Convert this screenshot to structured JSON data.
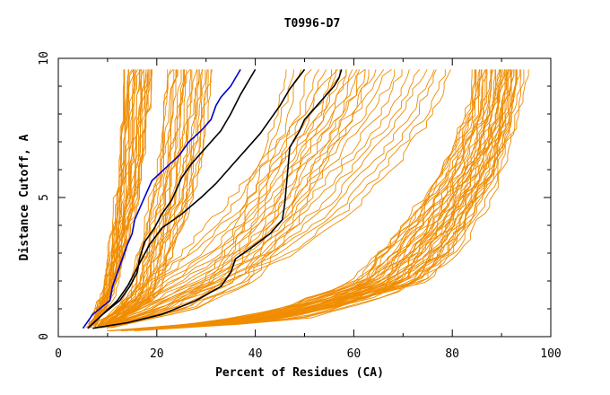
{
  "chart_data": {
    "type": "line",
    "title": "T0996-D7",
    "xlabel": "Percent of Residues (CA)",
    "ylabel": "Distance Cutoff, A",
    "xlim": [
      0,
      100
    ],
    "ylim": [
      0,
      10
    ],
    "xticks": [
      "0",
      "20",
      "40",
      "60",
      "80",
      "100"
    ],
    "yticks": [
      "0",
      "5",
      "10"
    ],
    "grid": false,
    "colors": {
      "background_models": "#f08c00",
      "blue": "#0000cc",
      "black": "#000000",
      "axis": "#000000"
    },
    "bundles": [
      {
        "name_hidden": true,
        "count": 28,
        "start": [
          [
            6,
            0.3
          ],
          [
            9,
            1.5
          ],
          [
            10.5,
            3.5
          ],
          [
            11.5,
            5
          ],
          [
            12,
            6.5
          ],
          [
            12.5,
            8
          ],
          [
            13,
            9.6
          ]
        ],
        "end": [
          [
            7,
            0.3
          ],
          [
            11,
            1.5
          ],
          [
            14,
            3.5
          ],
          [
            16,
            5
          ],
          [
            17,
            6.5
          ],
          [
            18,
            8
          ],
          [
            19,
            9.6
          ]
        ]
      },
      {
        "name_hidden": true,
        "count": 26,
        "start": [
          [
            8,
            0.3
          ],
          [
            14,
            1.5
          ],
          [
            17,
            3.5
          ],
          [
            19,
            5
          ],
          [
            20,
            6.5
          ],
          [
            21,
            8
          ],
          [
            22,
            9.6
          ]
        ],
        "end": [
          [
            10,
            0.3
          ],
          [
            20,
            1.5
          ],
          [
            24,
            3.5
          ],
          [
            27,
            5
          ],
          [
            29,
            6.5
          ],
          [
            30,
            8
          ],
          [
            31,
            9.6
          ]
        ]
      },
      {
        "name_hidden": true,
        "count": 36,
        "start": [
          [
            10,
            0.2
          ],
          [
            30,
            0.5
          ],
          [
            45,
            1
          ],
          [
            60,
            2
          ],
          [
            70,
            4
          ],
          [
            78,
            6
          ],
          [
            83,
            8
          ],
          [
            84,
            9.6
          ]
        ],
        "end": [
          [
            12,
            0.2
          ],
          [
            40,
            0.5
          ],
          [
            55,
            1
          ],
          [
            75,
            2
          ],
          [
            83,
            4
          ],
          [
            89,
            6
          ],
          [
            92,
            8
          ],
          [
            93,
            9.6
          ]
        ]
      },
      {
        "name_hidden": true,
        "count": 18,
        "start": [
          [
            7,
            0.3
          ],
          [
            12,
            1
          ],
          [
            18,
            2
          ],
          [
            25,
            3
          ],
          [
            33,
            4.5
          ],
          [
            42,
            6.5
          ],
          [
            50,
            8
          ],
          [
            56,
            9.6
          ]
        ],
        "end": [
          [
            9,
            0.3
          ],
          [
            20,
            1
          ],
          [
            35,
            2
          ],
          [
            48,
            3
          ],
          [
            60,
            4.5
          ],
          [
            70,
            6.5
          ],
          [
            76,
            8
          ],
          [
            80,
            9.6
          ]
        ]
      },
      {
        "name_hidden": true,
        "count": 12,
        "start": [
          [
            8,
            0.3
          ],
          [
            20,
            1
          ],
          [
            30,
            2
          ],
          [
            36,
            4
          ],
          [
            40,
            6
          ],
          [
            44,
            8
          ],
          [
            46,
            9.6
          ]
        ],
        "end": [
          [
            10,
            0.3
          ],
          [
            28,
            1
          ],
          [
            40,
            2
          ],
          [
            48,
            4
          ],
          [
            54,
            6
          ],
          [
            60,
            8
          ],
          [
            63,
            9.6
          ]
        ]
      },
      {
        "name_hidden": true,
        "count": 10,
        "start": [
          [
            12,
            0.2
          ],
          [
            40,
            0.6
          ],
          [
            58,
            1.5
          ],
          [
            72,
            3
          ],
          [
            80,
            5
          ],
          [
            86,
            7
          ],
          [
            90,
            9.6
          ]
        ],
        "end": [
          [
            14,
            0.2
          ],
          [
            50,
            0.6
          ],
          [
            68,
            1.5
          ],
          [
            82,
            3
          ],
          [
            88,
            5
          ],
          [
            92,
            7
          ],
          [
            95,
            9.6
          ]
        ]
      }
    ],
    "series": [
      {
        "color": "blue",
        "x": [
          5,
          7,
          10.5,
          11,
          12,
          13,
          14,
          15,
          15.5,
          17,
          19,
          22,
          24.5,
          26.5,
          29,
          31,
          32,
          33,
          35,
          37
        ],
        "y": [
          0.3,
          0.8,
          1.3,
          1.8,
          2.3,
          2.8,
          3.3,
          3.7,
          4.2,
          4.8,
          5.6,
          6.1,
          6.5,
          7.0,
          7.4,
          7.8,
          8.3,
          8.6,
          9.0,
          9.6
        ]
      },
      {
        "color": "black",
        "x": [
          6,
          9,
          12.5,
          14.5,
          16,
          16.5,
          17.5,
          19.5,
          21,
          23,
          24,
          25,
          27,
          30,
          33,
          35,
          37,
          40
        ],
        "y": [
          0.3,
          0.8,
          1.3,
          1.8,
          2.3,
          2.8,
          3.4,
          3.9,
          4.4,
          4.9,
          5.3,
          5.7,
          6.2,
          6.8,
          7.4,
          8.0,
          8.7,
          9.6
        ]
      },
      {
        "color": "black",
        "x": [
          6,
          9,
          12,
          14,
          15.5,
          17,
          18.5,
          21,
          25,
          29,
          32,
          35,
          38,
          41,
          43,
          45,
          47,
          50
        ],
        "y": [
          0.3,
          0.8,
          1.3,
          1.8,
          2.3,
          2.8,
          3.3,
          3.9,
          4.4,
          5.0,
          5.5,
          6.1,
          6.7,
          7.3,
          7.8,
          8.3,
          8.9,
          9.6
        ]
      },
      {
        "color": "black",
        "x": [
          7,
          14,
          21,
          28,
          33,
          35,
          36,
          40,
          43,
          45.5,
          46,
          46.5,
          47,
          49,
          50,
          52,
          54,
          56,
          57,
          57.5
        ],
        "y": [
          0.3,
          0.5,
          0.8,
          1.3,
          1.8,
          2.3,
          2.8,
          3.3,
          3.7,
          4.2,
          4.8,
          5.8,
          6.8,
          7.4,
          7.8,
          8.2,
          8.6,
          9.0,
          9.3,
          9.6
        ]
      }
    ]
  }
}
